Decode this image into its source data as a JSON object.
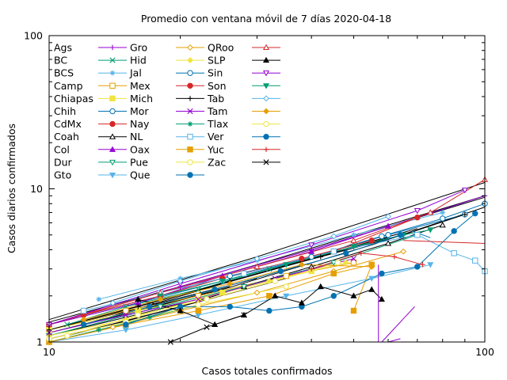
{
  "chart_data": {
    "type": "line",
    "title": "Promedio con ventana móvil de 7 días 2020-04-18",
    "xlabel": "Casos totales confirmados",
    "ylabel": "Casos diarios confirmados",
    "xscale": "log",
    "yscale": "log",
    "xlim": [
      10,
      100
    ],
    "ylim": [
      1,
      100
    ],
    "xticks": [
      {
        "value": 10,
        "label": "10"
      },
      {
        "value": 100,
        "label": "100"
      }
    ],
    "yticks": [
      {
        "value": 1,
        "label": "1"
      },
      {
        "value": 10,
        "label": "10"
      },
      {
        "value": 100,
        "label": "100"
      }
    ],
    "grid": false,
    "legend_position": "top-left",
    "series": [
      {
        "name": "Ags",
        "color": "#000000",
        "marker": "none",
        "x": [
          12,
          25,
          55,
          100
        ],
        "y": [
          1.3,
          2.2,
          4.3,
          7.6
        ]
      },
      {
        "name": "BC",
        "color": "#000000",
        "marker": "none",
        "x": [
          10,
          20,
          40,
          100
        ],
        "y": [
          1.35,
          2.3,
          4.0,
          8.8
        ]
      },
      {
        "name": "BCS",
        "color": "#000000",
        "marker": "none",
        "x": [
          10,
          18,
          30
        ],
        "y": [
          1.2,
          1.8,
          2.6
        ]
      },
      {
        "name": "Camp",
        "color": "#000000",
        "marker": "none",
        "x": [
          11,
          20,
          35
        ],
        "y": [
          1.1,
          1.7,
          2.6
        ]
      },
      {
        "name": "Chiapas",
        "color": "#000000",
        "marker": "none",
        "x": [
          10,
          16,
          26
        ],
        "y": [
          1.15,
          1.6,
          2.3
        ]
      },
      {
        "name": "Chih",
        "color": "#000000",
        "marker": "none",
        "x": [
          10,
          30,
          100
        ],
        "y": [
          1.3,
          3.2,
          9.0
        ]
      },
      {
        "name": "CdMx",
        "color": "#000000",
        "marker": "none",
        "x": [
          10,
          30,
          100
        ],
        "y": [
          1.4,
          3.6,
          11.0
        ]
      },
      {
        "name": "Coah",
        "color": "#000000",
        "marker": "none",
        "x": [
          12,
          30,
          70
        ],
        "y": [
          1.3,
          2.8,
          5.5
        ]
      },
      {
        "name": "Col",
        "color": "#000000",
        "marker": "none",
        "x": [
          10,
          15,
          22
        ],
        "y": [
          1.1,
          1.45,
          1.9
        ]
      },
      {
        "name": "Dur",
        "color": "#000000",
        "marker": "none",
        "x": [
          10,
          14,
          20
        ],
        "y": [
          1.05,
          1.3,
          1.7
        ]
      },
      {
        "name": "Gto",
        "color": "#000000",
        "marker": "none",
        "x": [
          10,
          25,
          60
        ],
        "y": [
          1.2,
          2.4,
          4.8
        ]
      },
      {
        "name": "Gro",
        "color": "#9400d3",
        "marker": "plus",
        "x": [
          10,
          20,
          40,
          70,
          100
        ],
        "y": [
          1.3,
          2.3,
          4.0,
          6.5,
          9.0
        ]
      },
      {
        "name": "Hid",
        "color": "#009e73",
        "marker": "cross",
        "x": [
          11,
          15,
          22,
          32,
          45
        ],
        "y": [
          1.3,
          1.7,
          2.2,
          3.0,
          3.9
        ]
      },
      {
        "name": "Jal",
        "color": "#56b4e9",
        "marker": "asterisk",
        "x": [
          13,
          20,
          30,
          50,
          80
        ],
        "y": [
          1.9,
          2.6,
          3.4,
          5.0,
          7.0
        ]
      },
      {
        "name": "Mex",
        "color": "#e69f00",
        "marker": "square-open",
        "x": [
          10,
          15,
          22,
          35,
          50
        ],
        "y": [
          1.2,
          1.6,
          2.0,
          2.7,
          3.3
        ]
      },
      {
        "name": "Mich",
        "color": "#f0e442",
        "marker": "square-filled",
        "x": [
          10,
          16,
          25,
          40
        ],
        "y": [
          1.2,
          1.6,
          2.1,
          2.9
        ]
      },
      {
        "name": "Mor",
        "color": "#0072b2",
        "marker": "circle-open",
        "x": [
          10,
          16,
          25,
          40,
          60,
          90
        ],
        "y": [
          1.3,
          1.8,
          2.5,
          3.6,
          5.0,
          6.8
        ]
      },
      {
        "name": "Nay",
        "color": "#d62728",
        "marker": "circle-filled",
        "x": [
          10,
          18,
          28,
          45,
          70
        ],
        "y": [
          1.3,
          2.1,
          2.8,
          3.9,
          6.5
        ]
      },
      {
        "name": "NL",
        "color": "#000000",
        "marker": "triangle-open",
        "x": [
          10,
          15,
          20,
          28,
          40,
          60,
          80
        ],
        "y": [
          1.0,
          1.3,
          1.7,
          2.3,
          3.1,
          4.4,
          5.8
        ]
      },
      {
        "name": "Oax",
        "color": "#9400d3",
        "marker": "triangle-filled",
        "x": [
          10,
          16,
          25,
          40,
          60
        ],
        "y": [
          1.3,
          1.8,
          2.7,
          3.9,
          5.7
        ]
      },
      {
        "name": "Pue",
        "color": "#009e73",
        "marker": "triangle-down-open",
        "x": [
          10,
          18,
          28,
          45,
          70
        ],
        "y": [
          1.1,
          1.7,
          2.3,
          3.3,
          5.0
        ]
      },
      {
        "name": "Que",
        "color": "#56b4e9",
        "marker": "triangle-down-filled",
        "x": [
          10,
          15,
          22,
          35,
          55,
          75
        ],
        "y": [
          1.0,
          1.2,
          1.5,
          2.0,
          2.6,
          3.2
        ]
      },
      {
        "name": "QRoo",
        "color": "#e69f00",
        "marker": "diamond-open",
        "x": [
          10,
          14,
          20,
          30,
          45,
          65
        ],
        "y": [
          1.0,
          1.25,
          1.6,
          2.1,
          2.9,
          3.9
        ]
      },
      {
        "name": "SLP",
        "color": "#f0e442",
        "marker": "diamond-filled",
        "x": [
          10,
          15,
          22,
          32,
          48
        ],
        "y": [
          1.1,
          1.4,
          1.9,
          2.5,
          3.3
        ]
      },
      {
        "name": "Sin",
        "color": "#0072b2",
        "marker": "circle-open",
        "x": [
          12,
          18,
          26,
          40,
          58,
          80,
          100
        ],
        "y": [
          1.5,
          2.0,
          2.7,
          3.6,
          4.9,
          6.4,
          8.0
        ]
      },
      {
        "name": "Son",
        "color": "#d62728",
        "marker": "circle-filled",
        "x": [
          12,
          18,
          25,
          38,
          55
        ],
        "y": [
          1.5,
          2.0,
          2.6,
          3.5,
          4.6
        ]
      },
      {
        "name": "Tab",
        "color": "#000000",
        "marker": "plus",
        "x": [
          10,
          16,
          26,
          42,
          65,
          90
        ],
        "y": [
          1.2,
          1.7,
          2.5,
          3.6,
          5.0,
          6.8
        ]
      },
      {
        "name": "Tam",
        "color": "#9400d3",
        "marker": "cross",
        "x": [
          10,
          15,
          22,
          33,
          50
        ],
        "y": [
          1.15,
          1.5,
          1.9,
          2.6,
          3.5
        ]
      },
      {
        "name": "Tlax",
        "color": "#009e73",
        "marker": "asterisk",
        "x": [
          10,
          13,
          17,
          22
        ],
        "y": [
          1.0,
          1.2,
          1.45,
          1.75
        ]
      },
      {
        "name": "Ver",
        "color": "#56b4e9",
        "marker": "square-open",
        "x": [
          12,
          18,
          28,
          45,
          70,
          85,
          95,
          100
        ],
        "y": [
          1.6,
          2.1,
          2.8,
          3.9,
          5.0,
          3.8,
          3.4,
          2.9
        ]
      },
      {
        "name": "Yuc",
        "color": "#e69f00",
        "marker": "square-filled",
        "x": [
          10,
          15,
          22,
          32,
          45,
          55,
          50
        ],
        "y": [
          1.0,
          1.3,
          1.6,
          2.0,
          2.8,
          3.2,
          1.6
        ]
      },
      {
        "name": "Zac",
        "color": "#f0e442",
        "marker": "circle-open",
        "x": [
          10,
          15,
          22,
          35
        ],
        "y": [
          1.05,
          1.35,
          1.75,
          2.3
        ]
      },
      {
        "name": "",
        "color": "#0072b2",
        "marker": "circle-filled",
        "x": [
          15,
          20,
          26,
          32,
          38,
          45,
          58,
          70,
          85,
          95
        ],
        "y": [
          1.3,
          1.7,
          1.7,
          1.6,
          1.7,
          2.0,
          2.8,
          3.1,
          5.3,
          6.9
        ]
      },
      {
        "name": "",
        "color": "#d62728",
        "marker": "triangle-open",
        "x": [
          10,
          18,
          30,
          50,
          75,
          100
        ],
        "y": [
          1.3,
          2.1,
          3.1,
          4.6,
          7.0,
          11.5
        ]
      },
      {
        "name": "",
        "color": "#000000",
        "marker": "triangle-filled",
        "x": [
          16,
          20,
          24,
          28,
          33,
          38,
          42,
          50,
          55,
          58
        ],
        "y": [
          1.9,
          1.6,
          1.3,
          1.5,
          2.0,
          1.8,
          2.3,
          2.0,
          2.2,
          1.9
        ]
      },
      {
        "name": "",
        "color": "#9400d3",
        "marker": "triangle-down-open",
        "x": [
          10,
          20,
          40,
          70,
          90
        ],
        "y": [
          1.3,
          2.4,
          4.3,
          7.2,
          9.8
        ]
      },
      {
        "name": "",
        "color": "#009e73",
        "marker": "triangle-down-filled",
        "x": [
          18,
          25,
          35,
          50,
          65,
          75
        ],
        "y": [
          2.0,
          2.5,
          3.2,
          4.2,
          5.0,
          5.4
        ]
      },
      {
        "name": "",
        "color": "#56b4e9",
        "marker": "diamond-open",
        "x": [
          14,
          20,
          30,
          45,
          60
        ],
        "y": [
          1.8,
          2.5,
          3.5,
          4.9,
          6.6
        ]
      },
      {
        "name": "",
        "color": "#e69f00",
        "marker": "diamond-filled",
        "x": [
          12,
          18,
          26,
          38,
          55
        ],
        "y": [
          1.4,
          1.9,
          2.4,
          3.2,
          3.1
        ]
      },
      {
        "name": "",
        "color": "#f0e442",
        "marker": "circle-open",
        "x": [
          11,
          16,
          23,
          33,
          46
        ],
        "y": [
          1.1,
          1.5,
          1.9,
          2.5,
          3.3
        ]
      },
      {
        "name": "",
        "color": "#0072b2",
        "marker": "circle-filled",
        "x": [
          12,
          17,
          24,
          34,
          48,
          64
        ],
        "y": [
          1.3,
          1.7,
          2.2,
          2.9,
          3.8,
          5.0
        ]
      },
      {
        "name": "",
        "color": "#d62728",
        "marker": "plus",
        "x": [
          40,
          52,
          62,
          72
        ],
        "y": [
          3.0,
          3.8,
          3.6,
          3.2
        ]
      },
      {
        "name": "",
        "color": "#000000",
        "marker": "cross",
        "x": [
          19,
          23,
          28
        ],
        "y": [
          1.0,
          1.25,
          1.5
        ]
      }
    ],
    "extra_segments": [
      {
        "color": "#9400d3",
        "x": [
          57,
          57
        ],
        "y": [
          1.0,
          3.2
        ]
      },
      {
        "color": "#9400d3",
        "x": [
          58,
          69
        ],
        "y": [
          1.0,
          1.7
        ]
      },
      {
        "color": "#9400d3",
        "x": [
          60,
          64
        ],
        "y": [
          1.0,
          1.05
        ]
      },
      {
        "color": "#d62728",
        "x": [
          65,
          100
        ],
        "y": [
          4.6,
          4.4
        ]
      },
      {
        "color": "#0072b2",
        "x": [
          68,
          75
        ],
        "y": [
          5.3,
          4.8
        ]
      }
    ]
  }
}
